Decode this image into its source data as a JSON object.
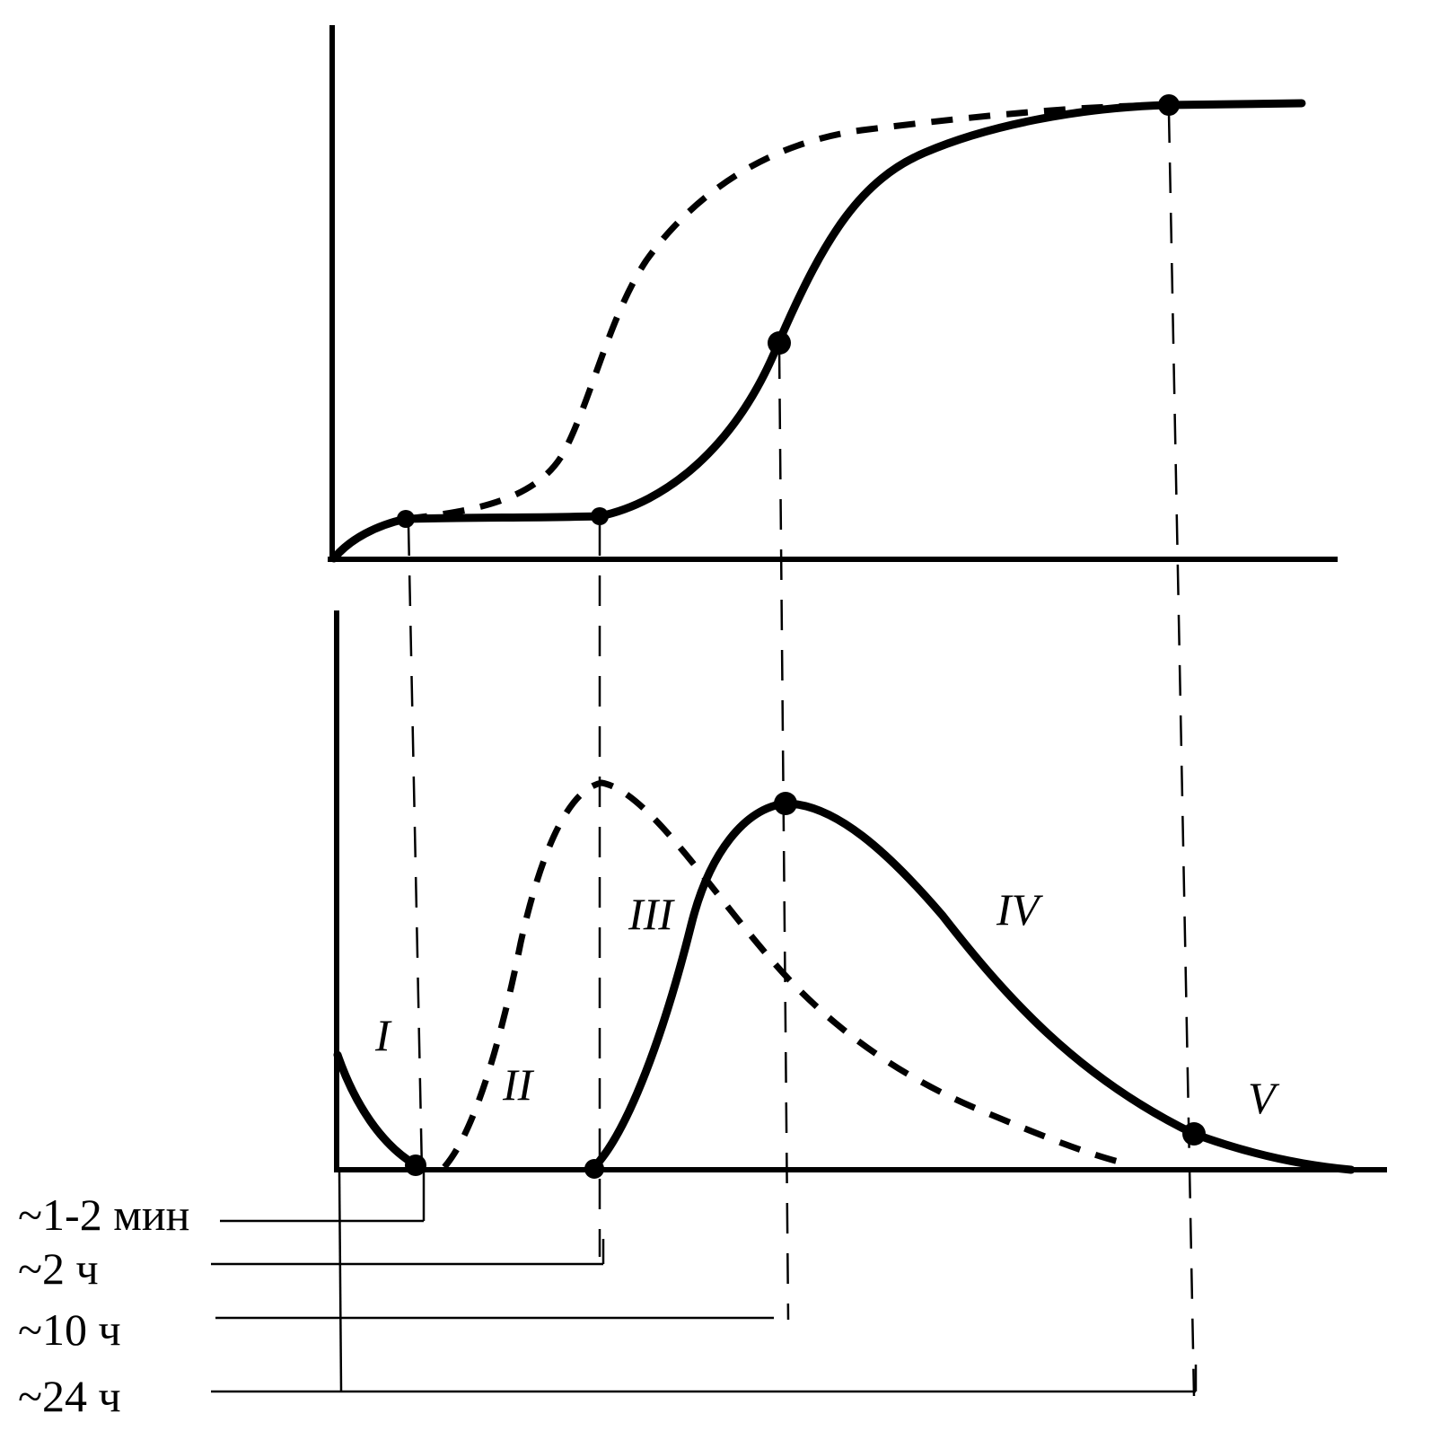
{
  "phase_labels": [
    "I",
    "II",
    "III",
    "IV",
    "V"
  ],
  "time_labels": [
    "~1-2 мин",
    "~2 ч",
    "~10 ч",
    "~24 ч"
  ],
  "colors": {
    "ink": "#000000",
    "paper": "#ffffff"
  }
}
